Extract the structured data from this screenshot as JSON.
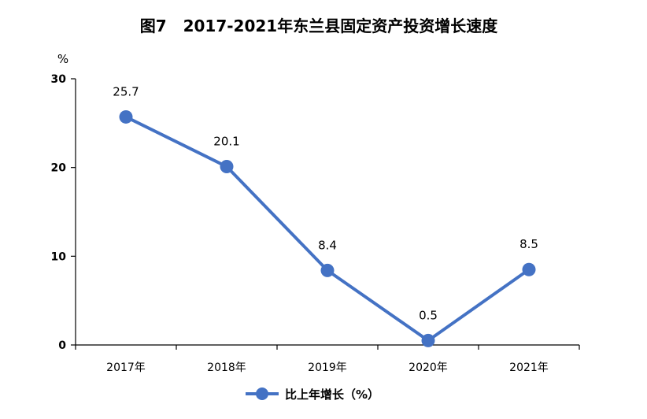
{
  "chart_data": {
    "type": "line",
    "title": "图7   2017-2021年东兰县固定资产投资增长速度",
    "unit_label": "%",
    "categories": [
      "2017年",
      "2018年",
      "2019年",
      "2020年",
      "2021年"
    ],
    "series": [
      {
        "name": "比上年增长（%）",
        "values": [
          25.7,
          20.1,
          8.4,
          0.5,
          8.5
        ],
        "color": "#4472C4"
      }
    ],
    "data_labels": [
      "25.7",
      "20.1",
      "8.4",
      "0.5",
      "8.5"
    ],
    "y_ticks": [
      "0",
      "10",
      "20",
      "30"
    ],
    "ylim": [
      0,
      30
    ],
    "grid": false,
    "legend_position": "bottom"
  }
}
